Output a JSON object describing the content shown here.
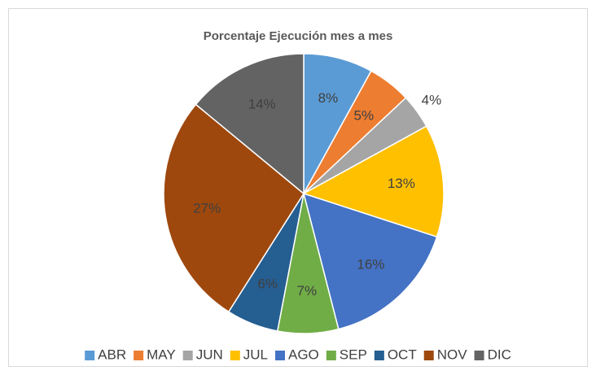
{
  "chart_data": {
    "type": "pie",
    "title": "Porcentaje Ejecución mes a mes",
    "categories": [
      "ABR",
      "MAY",
      "JUN",
      "JUL",
      "AGO",
      "SEP",
      "OCT",
      "NOV",
      "DIC"
    ],
    "values": [
      8,
      5,
      4,
      13,
      16,
      7,
      6,
      27,
      14
    ],
    "value_labels": [
      "8%",
      "5%",
      "4%",
      "13%",
      "16%",
      "7%",
      "6%",
      "27%",
      "14%"
    ],
    "colors": [
      "#5B9BD5",
      "#ED7D31",
      "#A5A5A5",
      "#FFC000",
      "#4472C4",
      "#70AD47",
      "#255E91",
      "#9E480E",
      "#636363"
    ],
    "legend": "bottom"
  }
}
